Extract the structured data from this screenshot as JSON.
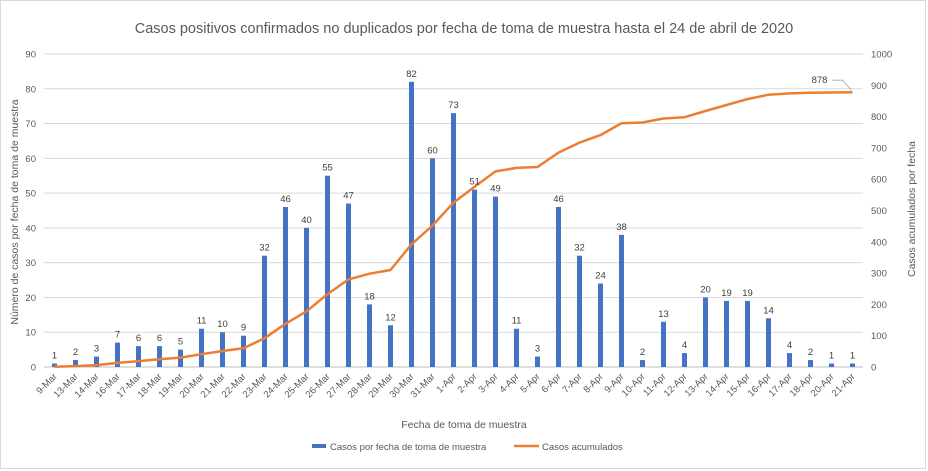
{
  "chart_data": {
    "type": "bar",
    "title": "Casos positivos confirmados no duplicados por fecha de toma de muestra hasta el 24 de abril de 2020",
    "xlabel": "Fecha de toma de muestra",
    "ylabel": "Número de casos por fecha de toma de muestra",
    "y2label": "Casos acumulados por fecha",
    "ylim": [
      0,
      90
    ],
    "y2lim": [
      0,
      1000
    ],
    "yticks": [
      "0",
      "10",
      "20",
      "30",
      "40",
      "50",
      "60",
      "70",
      "80",
      "90"
    ],
    "y2ticks": [
      "0",
      "100",
      "200",
      "300",
      "400",
      "500",
      "600",
      "700",
      "800",
      "900",
      "1000"
    ],
    "categories": [
      "9-Mar",
      "13-Mar",
      "14-Mar",
      "16-Mar",
      "17-Mar",
      "18-Mar",
      "19-Mar",
      "20-Mar",
      "21-Mar",
      "22-Mar",
      "23-Mar",
      "24-Mar",
      "25-Mar",
      "26-Mar",
      "27-Mar",
      "28-Mar",
      "29-Mar",
      "30-Mar",
      "31-Mar",
      "1-Apr",
      "2-Apr",
      "3-Apr",
      "4-Apr",
      "5-Apr",
      "6-Apr",
      "7-Apr",
      "8-Apr",
      "9-Apr",
      "10-Apr",
      "11-Apr",
      "12-Apr",
      "13-Apr",
      "14-Apr",
      "15-Apr",
      "16-Apr",
      "17-Apr",
      "18-Apr",
      "20-Apr",
      "21-Apr"
    ],
    "series": [
      {
        "name": "Casos por fecha de toma de muestra",
        "type": "bar",
        "axis": "left",
        "color": "#4472c4",
        "values": [
          1,
          2,
          3,
          7,
          6,
          6,
          5,
          11,
          10,
          9,
          32,
          46,
          40,
          55,
          47,
          18,
          12,
          82,
          60,
          73,
          51,
          49,
          11,
          3,
          46,
          32,
          24,
          38,
          2,
          13,
          4,
          20,
          19,
          19,
          14,
          4,
          2,
          1,
          1
        ]
      },
      {
        "name": "Casos acumulados",
        "type": "line",
        "axis": "right",
        "color": "#ed7d31",
        "values": [
          1,
          3,
          6,
          13,
          19,
          25,
          30,
          41,
          51,
          60,
          92,
          138,
          178,
          233,
          280,
          298,
          310,
          392,
          452,
          525,
          576,
          625,
          636,
          639,
          685,
          717,
          741,
          779,
          781,
          794,
          798,
          818,
          837,
          856,
          870,
          874,
          876,
          877,
          878
        ]
      }
    ],
    "annotation": "878",
    "grid": true,
    "legend": "bottom"
  },
  "colors": {
    "bar": "#4472c4",
    "line": "#ed7d31",
    "grid": "#d9d9d9",
    "text": "#595959"
  }
}
